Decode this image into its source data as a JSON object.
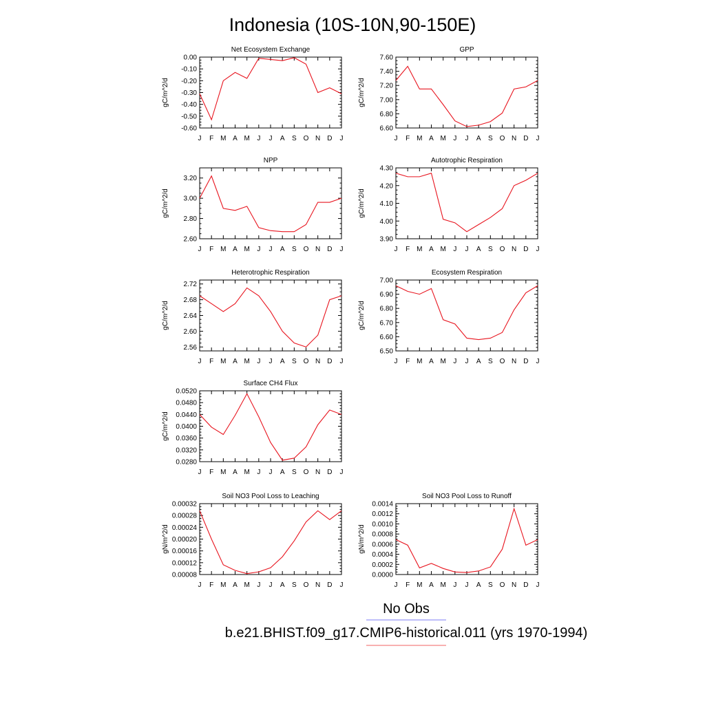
{
  "title": "Indonesia (10S-10N,90-150E)",
  "legend": {
    "obs_label": "No Obs",
    "obs_color": "#7b7bf5",
    "model_label": "b.e21.BHIST.f09_g17.CMIP6-historical.011 (yrs 1970-1994)",
    "model_color": "#f06060"
  },
  "line_color": "#e8141e",
  "chart_data": [
    {
      "type": "line",
      "title": "Net Ecosystem Exchange",
      "ylabel": "gC/m^2/d",
      "categories": [
        "J",
        "F",
        "M",
        "A",
        "M",
        "J",
        "J",
        "A",
        "S",
        "O",
        "N",
        "D",
        "J"
      ],
      "values": [
        -0.31,
        -0.53,
        -0.2,
        -0.13,
        -0.18,
        -0.01,
        -0.02,
        -0.03,
        -0.005,
        -0.06,
        -0.3,
        -0.26,
        -0.31
      ],
      "ylim": [
        -0.6,
        0.0
      ],
      "yticks": [
        -0.6,
        -0.5,
        -0.4,
        -0.3,
        -0.2,
        -0.1,
        0.0
      ],
      "ytick_labels": [
        "-0.60",
        "-0.50",
        "-0.40",
        "-0.30",
        "-0.20",
        "-0.10",
        "0.00"
      ]
    },
    {
      "type": "line",
      "title": "GPP",
      "ylabel": "gC/m^2/d",
      "categories": [
        "J",
        "F",
        "M",
        "A",
        "M",
        "J",
        "J",
        "A",
        "S",
        "O",
        "N",
        "D",
        "J"
      ],
      "values": [
        7.27,
        7.47,
        7.15,
        7.15,
        6.93,
        6.7,
        6.62,
        6.64,
        6.69,
        6.81,
        7.15,
        7.18,
        7.27
      ],
      "ylim": [
        6.6,
        7.6
      ],
      "yticks": [
        6.6,
        6.8,
        7.0,
        7.2,
        7.4,
        7.6
      ],
      "ytick_labels": [
        "6.60",
        "6.80",
        "7.00",
        "7.20",
        "7.40",
        "7.60"
      ]
    },
    {
      "type": "line",
      "title": "NPP",
      "ylabel": "gC/m^2/d",
      "categories": [
        "J",
        "F",
        "M",
        "A",
        "M",
        "J",
        "J",
        "A",
        "S",
        "O",
        "N",
        "D",
        "J"
      ],
      "values": [
        3.0,
        3.22,
        2.9,
        2.88,
        2.92,
        2.71,
        2.68,
        2.67,
        2.67,
        2.74,
        2.96,
        2.96,
        3.0
      ],
      "ylim": [
        2.6,
        3.3
      ],
      "yticks": [
        2.6,
        2.8,
        3.0,
        3.2
      ],
      "ytick_labels": [
        "2.60",
        "2.80",
        "3.00",
        "3.20"
      ]
    },
    {
      "type": "line",
      "title": "Autotrophic Respiration",
      "ylabel": "gC/m^2/d",
      "categories": [
        "J",
        "F",
        "M",
        "A",
        "M",
        "J",
        "J",
        "A",
        "S",
        "O",
        "N",
        "D",
        "J"
      ],
      "values": [
        4.27,
        4.25,
        4.25,
        4.27,
        4.01,
        3.99,
        3.94,
        3.98,
        4.02,
        4.07,
        4.2,
        4.23,
        4.27
      ],
      "ylim": [
        3.9,
        4.3
      ],
      "yticks": [
        3.9,
        4.0,
        4.1,
        4.2,
        4.3
      ],
      "ytick_labels": [
        "3.90",
        "4.00",
        "4.10",
        "4.20",
        "4.30"
      ]
    },
    {
      "type": "line",
      "title": "Heterotrophic Respiration",
      "ylabel": "gC/m^2/d",
      "categories": [
        "J",
        "F",
        "M",
        "A",
        "M",
        "J",
        "J",
        "A",
        "S",
        "O",
        "N",
        "D",
        "J"
      ],
      "values": [
        2.69,
        2.67,
        2.65,
        2.67,
        2.71,
        2.69,
        2.65,
        2.6,
        2.57,
        2.56,
        2.59,
        2.68,
        2.69
      ],
      "ylim": [
        2.55,
        2.73
      ],
      "yticks": [
        2.56,
        2.6,
        2.64,
        2.68,
        2.72
      ],
      "ytick_labels": [
        "2.56",
        "2.60",
        "2.64",
        "2.68",
        "2.72"
      ]
    },
    {
      "type": "line",
      "title": "Ecosystem Respiration",
      "ylabel": "gC/m^2/d",
      "categories": [
        "J",
        "F",
        "M",
        "A",
        "M",
        "J",
        "J",
        "A",
        "S",
        "O",
        "N",
        "D",
        "J"
      ],
      "values": [
        6.96,
        6.92,
        6.9,
        6.94,
        6.72,
        6.69,
        6.59,
        6.58,
        6.59,
        6.63,
        6.79,
        6.91,
        6.96
      ],
      "ylim": [
        6.5,
        7.0
      ],
      "yticks": [
        6.5,
        6.6,
        6.7,
        6.8,
        6.9,
        7.0
      ],
      "ytick_labels": [
        "6.50",
        "6.60",
        "6.70",
        "6.80",
        "6.90",
        "7.00"
      ]
    },
    {
      "type": "line",
      "title": "Surface CH4 Flux",
      "ylabel": "gC/m^2/d",
      "categories": [
        "J",
        "F",
        "M",
        "A",
        "M",
        "J",
        "J",
        "A",
        "S",
        "O",
        "N",
        "D",
        "J"
      ],
      "values": [
        0.044,
        0.0397,
        0.0372,
        0.0437,
        0.051,
        0.0432,
        0.0345,
        0.0285,
        0.0292,
        0.033,
        0.0405,
        0.0455,
        0.044
      ],
      "ylim": [
        0.028,
        0.052
      ],
      "yticks": [
        0.028,
        0.032,
        0.036,
        0.04,
        0.044,
        0.048,
        0.052
      ],
      "ytick_labels": [
        "0.0280",
        "0.0320",
        "0.0360",
        "0.0400",
        "0.0440",
        "0.0480",
        "0.0520"
      ]
    },
    {
      "type": "line",
      "title": "Soil NO3 Pool Loss to Leaching",
      "ylabel": "gN/m^2/d",
      "categories": [
        "J",
        "F",
        "M",
        "A",
        "M",
        "J",
        "J",
        "A",
        "S",
        "O",
        "N",
        "D",
        "J"
      ],
      "values": [
        0.000296,
        0.0002,
        0.000113,
        9.4e-05,
        8.3e-05,
        8.9e-05,
        0.000103,
        0.00014,
        0.000194,
        0.000258,
        0.000296,
        0.000266,
        0.000296
      ],
      "ylim": [
        8e-05,
        0.00032
      ],
      "yticks": [
        8e-05,
        0.00012,
        0.00016,
        0.0002,
        0.00024,
        0.00028,
        0.00032
      ],
      "ytick_labels": [
        "0.00008",
        "0.00012",
        "0.00016",
        "0.00020",
        "0.00024",
        "0.00028",
        "0.00032"
      ]
    },
    {
      "type": "line",
      "title": "Soil NO3 Pool Loss to Runoff",
      "ylabel": "gN/m^2/d",
      "categories": [
        "J",
        "F",
        "M",
        "A",
        "M",
        "J",
        "J",
        "A",
        "S",
        "O",
        "N",
        "D",
        "J"
      ],
      "values": [
        0.00069,
        0.00058,
        0.00013,
        0.00022,
        0.00012,
        5e-05,
        4e-05,
        7e-05,
        0.00015,
        0.0005,
        0.0013,
        0.00058,
        0.00069
      ],
      "ylim": [
        0.0,
        0.0014
      ],
      "yticks": [
        0.0,
        0.0002,
        0.0004,
        0.0006,
        0.0008,
        0.001,
        0.0012,
        0.0014
      ],
      "ytick_labels": [
        "0.0000",
        "0.0002",
        "0.0004",
        "0.0006",
        "0.0008",
        "0.0010",
        "0.0012",
        "0.0014"
      ]
    }
  ]
}
